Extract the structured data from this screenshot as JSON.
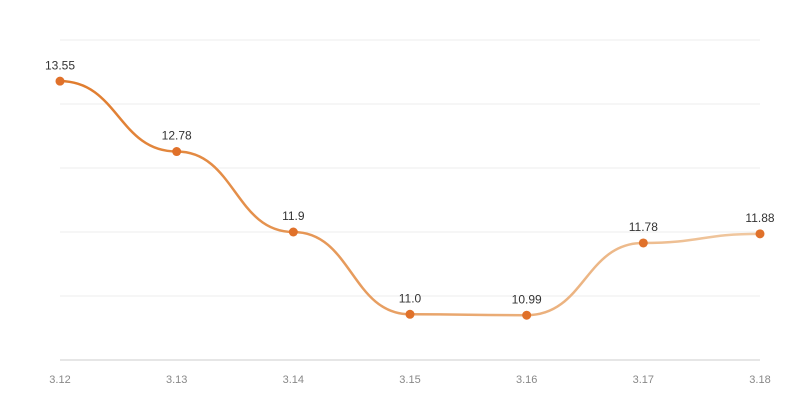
{
  "chart_data": {
    "type": "line",
    "categories": [
      "3.12",
      "3.13",
      "3.14",
      "3.15",
      "3.16",
      "3.17",
      "3.18"
    ],
    "values": [
      13.55,
      12.78,
      11.9,
      11.0,
      10.99,
      11.78,
      11.88
    ],
    "value_labels": [
      "13.55",
      "12.78",
      "11.9",
      "11.0",
      "10.99",
      "11.78",
      "11.88"
    ],
    "line_colors": [
      "#e07b2c",
      "#f0c9a2"
    ],
    "marker_color": "#e0712a",
    "ylim": [
      10.5,
      14
    ],
    "yticks": [
      10.5,
      11.2,
      11.9,
      12.6,
      13.3,
      14
    ],
    "grid": true,
    "smooth": true
  }
}
